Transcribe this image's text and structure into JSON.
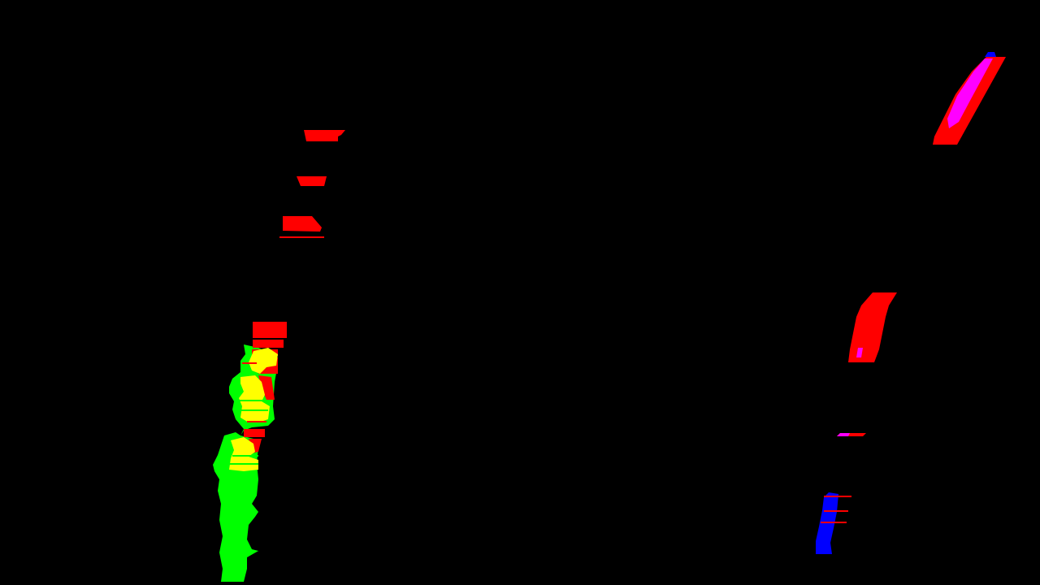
{
  "image": {
    "kind": "binary lane-line mask",
    "background_color": "#000000",
    "channel_colors": {
      "red": "#ff0000",
      "green": "#00ff00",
      "blue": "#0000ff",
      "yellow": "#ffff00",
      "magenta": "#ff00ff"
    },
    "regions": [
      "left-lane-upper-dashes",
      "left-lane-lower-blob",
      "right-lane-top-dash",
      "right-lane-middle-dash",
      "right-lane-lower-blue-segment"
    ]
  }
}
